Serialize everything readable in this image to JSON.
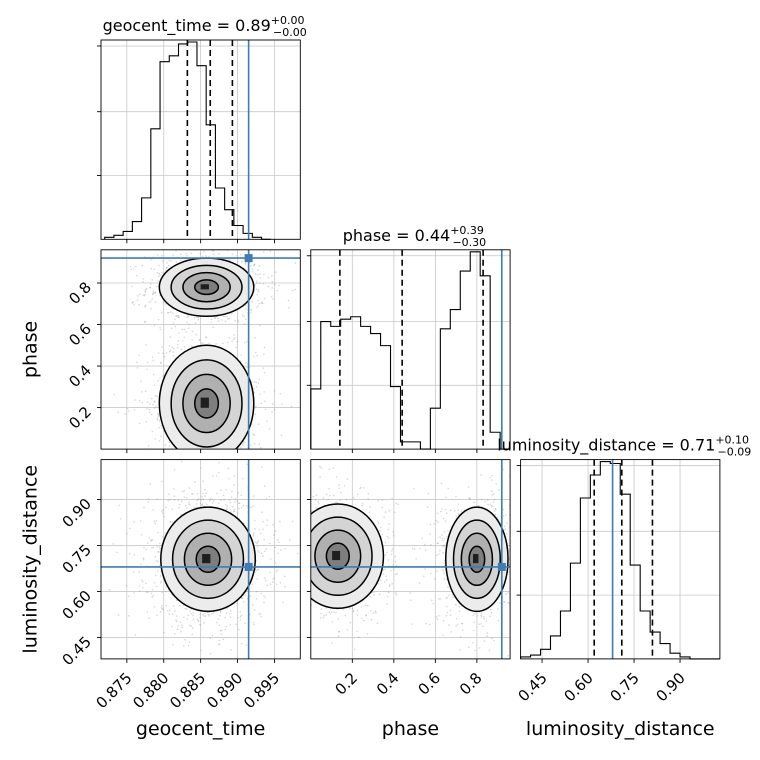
{
  "chart_data": {
    "type": "corner",
    "grid": true,
    "truth_color": "#3f7cb3",
    "parameters": [
      {
        "name": "geocent_time",
        "median": "0.89",
        "err_plus": "+0.00",
        "err_minus": "−0.00",
        "range": [
          0.8715,
          0.8985
        ],
        "ticks": [
          0.875,
          0.88,
          0.885,
          0.89,
          0.895
        ],
        "tick_labels": [
          "0.875",
          "0.880",
          "0.885",
          "0.890",
          "0.895"
        ],
        "quantiles": [
          0.8832,
          0.8863,
          0.8893
        ],
        "truth": 0.8915,
        "hist_edges_start": 0.872,
        "hist_bin_width": 0.00125,
        "hist": [
          1,
          2,
          4,
          9,
          21,
          56,
          90,
          93,
          99,
          100,
          88,
          58,
          26,
          15,
          7,
          3,
          1,
          0
        ]
      },
      {
        "name": "phase",
        "median": "0.44",
        "err_plus": "+0.39",
        "err_minus": "−0.30",
        "range": [
          0.0,
          0.96
        ],
        "ticks": [
          0.2,
          0.4,
          0.6,
          0.8
        ],
        "tick_labels": [
          "0.2",
          "0.4",
          "0.6",
          "0.8"
        ],
        "quantiles": [
          0.14,
          0.44,
          0.83
        ],
        "truth": 0.92,
        "hist_edges_start": 0.0,
        "hist_bin_width": 0.048,
        "hist": [
          25,
          53,
          51,
          54,
          55,
          51,
          48,
          43,
          26,
          3,
          3,
          0,
          17,
          50,
          58,
          74,
          82,
          72,
          7,
          0
        ]
      },
      {
        "name": "luminosity_distance",
        "median": "0.71",
        "err_plus": "+0.10",
        "err_minus": "−0.09",
        "range": [
          0.38,
          1.03
        ],
        "ticks": [
          0.45,
          0.6,
          0.75,
          0.9
        ],
        "tick_labels": [
          "0.45",
          "0.60",
          "0.75",
          "0.90"
        ],
        "quantiles": [
          0.62,
          0.71,
          0.81
        ],
        "truth": 0.68,
        "hist_edges_start": 0.38,
        "hist_bin_width": 0.0325,
        "hist": [
          1,
          2,
          5,
          12,
          25,
          50,
          84,
          96,
          103,
          102,
          86,
          49,
          25,
          14,
          8,
          3,
          1,
          0,
          0,
          0
        ]
      }
    ],
    "pairs": [
      {
        "x": 0,
        "y": 1,
        "blobs": [
          {
            "cx": 0.8858,
            "cy": 0.78,
            "sx": 0.0032,
            "sy": 0.07,
            "n": 900
          },
          {
            "cx": 0.8858,
            "cy": 0.22,
            "sx": 0.0032,
            "sy": 0.14,
            "n": 900
          }
        ]
      },
      {
        "x": 0,
        "y": 2,
        "blobs": [
          {
            "cx": 0.886,
            "cy": 0.705,
            "sx": 0.0032,
            "sy": 0.085,
            "n": 1500
          }
        ]
      },
      {
        "x": 1,
        "y": 2,
        "blobs": [
          {
            "cx": 0.13,
            "cy": 0.715,
            "sx": 0.11,
            "sy": 0.085,
            "n": 800
          },
          {
            "cx": 0.8,
            "cy": 0.705,
            "sx": 0.075,
            "sy": 0.085,
            "n": 900
          }
        ]
      }
    ]
  }
}
